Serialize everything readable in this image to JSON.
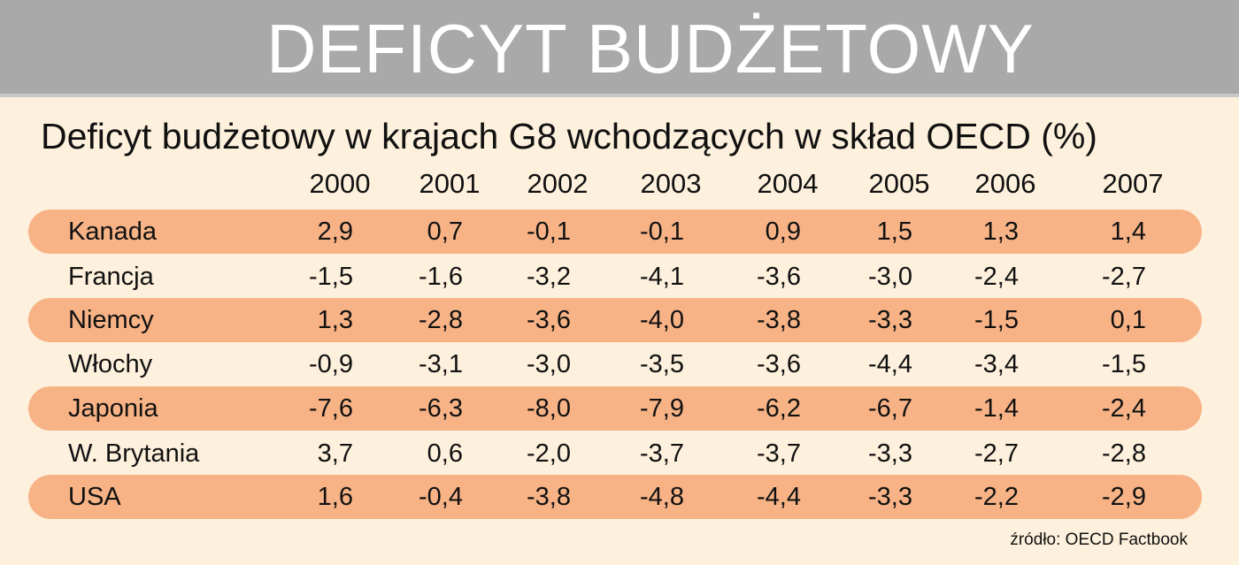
{
  "banner": {
    "title": "DEFICYT BUDŻETOWY"
  },
  "subtitle": "Deficyt budżetowy w krajach G8 wchodzących w skład OECD (%)",
  "source": "źródło: OECD Factbook",
  "chart_data": {
    "type": "table",
    "title": "DEFICYT BUDŻETOWY",
    "subtitle": "Deficyt budżetowy w krajach G8 wchodzących w skład OECD (%)",
    "columns": [
      "2000",
      "2001",
      "2002",
      "2003",
      "2004",
      "2005",
      "2006",
      "2007"
    ],
    "rows": [
      {
        "country": "Kanada",
        "values": [
          "2,9",
          "0,7",
          "-0,1",
          "-0,1",
          "0,9",
          "1,5",
          "1,3",
          "1,4"
        ]
      },
      {
        "country": "Francja",
        "values": [
          "-1,5",
          "-1,6",
          "-3,2",
          "-4,1",
          "-3,6",
          "-3,0",
          "-2,4",
          "-2,7"
        ]
      },
      {
        "country": "Niemcy",
        "values": [
          "1,3",
          "-2,8",
          "-3,6",
          "-4,0",
          "-3,8",
          "-3,3",
          "-1,5",
          "0,1"
        ]
      },
      {
        "country": "Włochy",
        "values": [
          "-0,9",
          "-3,1",
          "-3,0",
          "-3,5",
          "-3,6",
          "-4,4",
          "-3,4",
          "-1,5"
        ]
      },
      {
        "country": "Japonia",
        "values": [
          "-7,6",
          "-6,3",
          "-8,0",
          "-7,9",
          "-6,2",
          "-6,7",
          "-1,4",
          "-2,4"
        ]
      },
      {
        "country": "W. Brytania",
        "values": [
          "3,7",
          "0,6",
          "-2,0",
          "-3,7",
          "-3,7",
          "-3,3",
          "-2,7",
          "-2,8"
        ]
      },
      {
        "country": "USA",
        "values": [
          "1,6",
          "-0,4",
          "-3,8",
          "-4,8",
          "-4,4",
          "-3,3",
          "-2,2",
          "-2,9"
        ]
      }
    ],
    "colors": {
      "banner": "#a9a9aa",
      "background": "#fdf0dc",
      "row_band": "#f7b386"
    }
  }
}
